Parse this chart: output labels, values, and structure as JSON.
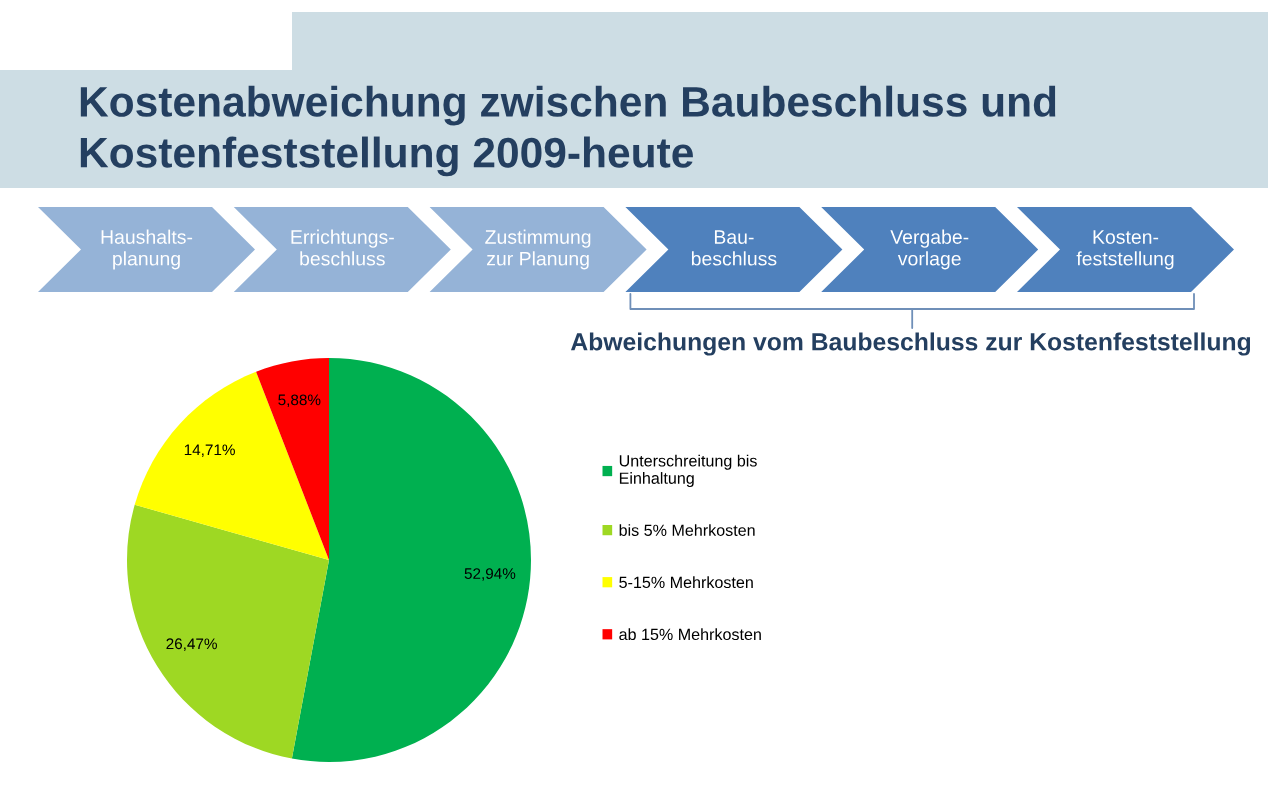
{
  "chart_data": [
    {
      "type": "other",
      "title": "Kostenabweichung zwischen Baubeschluss und\nKostenfeststellung 2009-heute",
      "categories": [
        "Haushalts-\nplanung",
        "Errichtungs-\nbeschluss",
        "Zustimmung\nzur Planung",
        "Bau-\nbeschluss",
        "Vergabe-\nvorlage",
        "Kosten-\nfeststellung"
      ],
      "colors": [
        "#95b3d7",
        "#95b3d7",
        "#95b3d7",
        "#4f81bd",
        "#4f81bd",
        "#4f81bd"
      ]
    },
    {
      "type": "pie",
      "title": "Abweichungen vom Baubeschluss zur Kostenfeststellung",
      "categories": [
        "Unterschreitung bis\nEinhaltung",
        "bis 5% Mehrkosten",
        "5-15% Mehrkosten",
        "ab 15% Mehrkosten"
      ],
      "values": [
        52.94,
        26.47,
        14.71,
        5.88
      ],
      "colors": [
        "#00b050",
        "#9ed823",
        "#ffff00",
        "#ff0000"
      ],
      "value_labels": [
        "52,94%",
        "26,47%",
        "14,71%",
        "5,88%"
      ],
      "legend": "right"
    }
  ]
}
